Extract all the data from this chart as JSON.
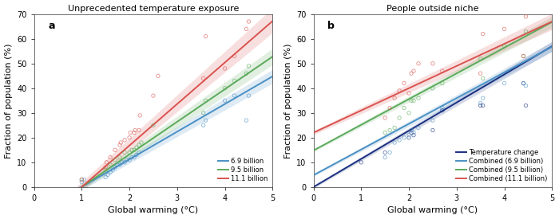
{
  "title_a": "Unprecedented temperature exposure",
  "title_b": "People outside niche",
  "xlabel": "Global warming (°C)",
  "ylabel": "Fraction of population (%)",
  "xlim": [
    0,
    5
  ],
  "ylim": [
    0,
    70
  ],
  "xticks": [
    0,
    1,
    2,
    3,
    4,
    5
  ],
  "yticks": [
    0,
    10,
    20,
    30,
    40,
    50,
    60,
    70
  ],
  "panel_a": {
    "lines": [
      {
        "slope": 11.2,
        "intercept": -11.2,
        "color": "#4a90c4",
        "label": "6.9 billion",
        "band_base": 0.8,
        "band_slope": 0.4
      },
      {
        "slope": 13.2,
        "intercept": -13.2,
        "color": "#5baa5b",
        "label": "9.5 billion",
        "band_base": 0.8,
        "band_slope": 0.5
      },
      {
        "slope": 16.8,
        "intercept": -16.8,
        "color": "#d9534f",
        "label": "11.1 billion",
        "band_base": 1.0,
        "band_slope": 0.8
      }
    ],
    "scatter": {
      "blue": {
        "x": [
          1.0,
          1.05,
          1.5,
          1.55,
          1.6,
          1.65,
          1.7,
          1.75,
          1.8,
          1.85,
          1.9,
          1.95,
          2.0,
          2.05,
          2.1,
          2.15,
          2.2,
          3.55,
          3.6,
          4.0,
          4.2,
          4.45,
          4.5
        ],
        "y": [
          2,
          3,
          4,
          5,
          6,
          7,
          8,
          9,
          9,
          10,
          10,
          11,
          11,
          12,
          12,
          13,
          14,
          25,
          27,
          35,
          37,
          27,
          37
        ]
      },
      "green": {
        "x": [
          1.0,
          1.5,
          1.6,
          1.7,
          1.8,
          1.9,
          2.0,
          2.05,
          2.1,
          2.15,
          2.2,
          2.25,
          2.5,
          3.55,
          3.6,
          4.0,
          4.2,
          4.45,
          4.5
        ],
        "y": [
          3,
          7,
          9,
          11,
          12,
          14,
          14,
          15,
          15,
          16,
          17,
          18,
          25,
          30,
          35,
          40,
          43,
          46,
          49
        ]
      },
      "red": {
        "x": [
          1.0,
          1.5,
          1.52,
          1.6,
          1.7,
          1.8,
          1.82,
          1.9,
          2.0,
          2.02,
          2.1,
          2.12,
          2.2,
          2.22,
          2.5,
          2.6,
          3.55,
          3.6,
          4.0,
          4.2,
          4.45,
          4.5
        ],
        "y": [
          3,
          8,
          10,
          12,
          15,
          17,
          18,
          19,
          20,
          22,
          22,
          23,
          23,
          29,
          37,
          45,
          44,
          61,
          48,
          53,
          64,
          67
        ]
      }
    }
  },
  "panel_b": {
    "lines": [
      {
        "slope": 11.4,
        "intercept": 0.0,
        "color": "#1a3080",
        "label": "Temperature change",
        "band_base": 0.5,
        "band_slope": 0.3
      },
      {
        "slope": 10.4,
        "intercept": 4.8,
        "color": "#4a90c4",
        "label": "Combined (6.9 billion)",
        "band_base": 0.5,
        "band_slope": 0.3
      },
      {
        "slope": 10.4,
        "intercept": 14.8,
        "color": "#5baa5b",
        "label": "Combined (9.5 billion)",
        "band_base": 0.5,
        "band_slope": 0.35
      },
      {
        "slope": 9.0,
        "intercept": 22.0,
        "color": "#d9534f",
        "label": "Combined (11.1 billion)",
        "band_base": 0.8,
        "band_slope": 0.5
      }
    ],
    "scatter": {
      "darkblue": {
        "x": [
          1.0,
          1.5,
          2.0,
          2.05,
          2.1,
          2.5,
          2.7,
          3.5,
          3.55,
          4.4,
          4.45
        ],
        "y": [
          10,
          14,
          20,
          22,
          21,
          23,
          31,
          33,
          33,
          42,
          33
        ]
      },
      "blue": {
        "x": [
          1.5,
          1.6,
          1.7,
          1.8,
          1.9,
          2.0,
          2.05,
          2.1,
          2.2,
          2.5,
          2.7,
          3.5,
          3.55,
          4.0,
          4.4,
          4.45
        ],
        "y": [
          12,
          14,
          18,
          19,
          20,
          21,
          23,
          22,
          24,
          27,
          32,
          34,
          36,
          42,
          42,
          41
        ]
      },
      "green": {
        "x": [
          1.5,
          1.6,
          1.7,
          1.8,
          1.9,
          2.0,
          2.05,
          2.1,
          2.2,
          2.5,
          2.7,
          3.5,
          3.55,
          4.0,
          4.4,
          4.45
        ],
        "y": [
          22,
          23,
          24,
          28,
          32,
          30,
          35,
          35,
          36,
          40,
          42,
          52,
          44,
          57,
          53,
          63
        ]
      },
      "red": {
        "x": [
          1.5,
          1.6,
          1.7,
          1.8,
          1.9,
          2.0,
          2.05,
          2.1,
          2.2,
          2.5,
          2.7,
          3.5,
          3.55,
          4.0,
          4.4,
          4.45
        ],
        "y": [
          28,
          32,
          36,
          39,
          42,
          38,
          46,
          47,
          50,
          50,
          47,
          46,
          62,
          64,
          53,
          69
        ]
      }
    }
  },
  "colors": {
    "blue_line": "#4a90c4",
    "green_line": "#5baa5b",
    "red_line": "#d9534f",
    "darkblue_line": "#1a3080"
  }
}
